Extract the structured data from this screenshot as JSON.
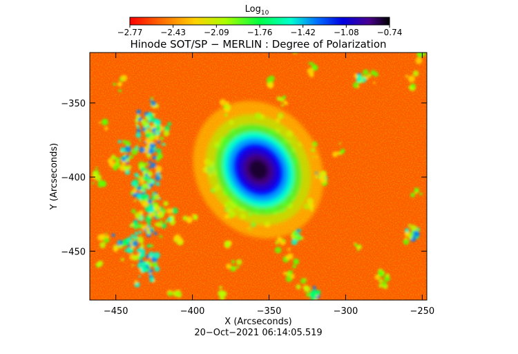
{
  "chart_data": {
    "type": "heatmap",
    "title": "Hinode SOT/SP − MERLIN : Degree of Polarization",
    "xlabel": "X (Arcseconds)",
    "ylabel": "Y (Arcseconds)",
    "xlim": [
      -467,
      -247
    ],
    "ylim": [
      -483,
      -316
    ],
    "x_ticks": [
      "−450",
      "−400",
      "−350",
      "−300",
      "−250"
    ],
    "x_tick_values": [
      -450,
      -400,
      -350,
      -300,
      -250
    ],
    "y_ticks": [
      "−350",
      "−400",
      "−450"
    ],
    "y_tick_values": [
      -350,
      -400,
      -450
    ],
    "colorbar": {
      "label": "Log",
      "label_sub": "10",
      "colormap": "rainbow",
      "range": [
        -2.77,
        -0.74
      ],
      "ticks": [
        "−2.77",
        "−2.43",
        "−2.09",
        "−1.76",
        "−1.42",
        "−1.08",
        "−0.74"
      ]
    },
    "background_level": -2.6,
    "features": [
      {
        "name": "sunspot",
        "x": -357,
        "y": -395,
        "rx": 13,
        "ry": 17,
        "peak": -0.8
      }
    ],
    "timestamp": "20−Oct−2021 06:14:05.519"
  }
}
